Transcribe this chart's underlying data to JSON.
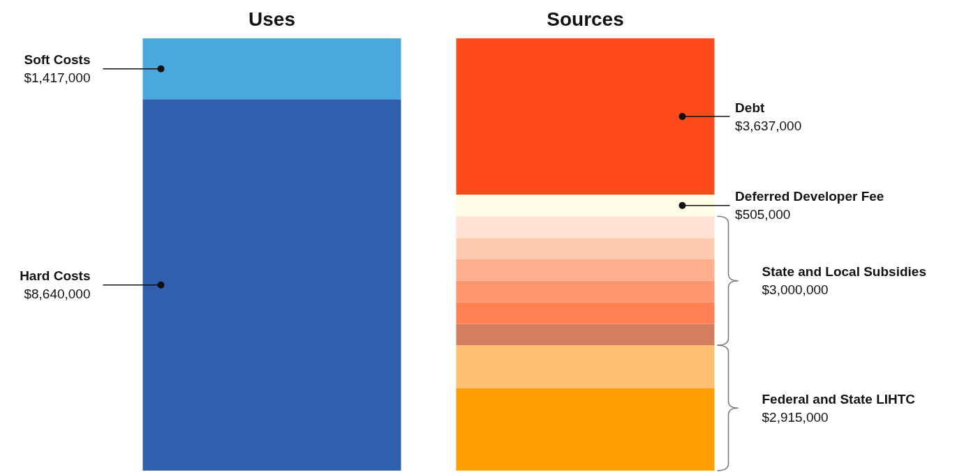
{
  "chart_data": {
    "type": "bar",
    "stacked": true,
    "categories": [
      "Uses",
      "Sources"
    ],
    "series": [
      {
        "name": "Hard Costs",
        "color": "#2f5fad",
        "values": [
          8640000,
          null
        ],
        "value_labels": [
          "$8,640,000",
          null
        ]
      },
      {
        "name": "Soft Costs",
        "color": "#4aa8dc",
        "values": [
          1417000,
          null
        ],
        "value_labels": [
          "$1,417,000",
          null
        ]
      },
      {
        "color": "#ff9e00",
        "values": [
          null,
          1915000
        ]
      },
      {
        "color": "#ffbf73",
        "values": [
          null,
          1000000
        ]
      },
      {
        "color": "#d47e60",
        "values": [
          null,
          500000
        ]
      },
      {
        "color": "#ff8052",
        "values": [
          null,
          500000
        ]
      },
      {
        "color": "#ff9670",
        "values": [
          null,
          500000
        ]
      },
      {
        "color": "#ffaf8e",
        "values": [
          null,
          500000
        ]
      },
      {
        "color": "#ffcbb0",
        "values": [
          null,
          500000
        ]
      },
      {
        "color": "#ffe2d4",
        "values": [
          null,
          500000
        ]
      },
      {
        "name": "Deferred Developer Fee",
        "color": "#fffde6",
        "values": [
          null,
          505000
        ],
        "value_labels": [
          null,
          "$505,000"
        ]
      },
      {
        "name": "Debt",
        "color": "#ff4a1c",
        "values": [
          null,
          3637000
        ],
        "value_labels": [
          null,
          "$3,637,000"
        ]
      }
    ],
    "annotations": [
      "State and Local Subsidies\n$3,000,000",
      "Federal and State LIHTC\n$2,915,000"
    ],
    "legend": false
  }
}
